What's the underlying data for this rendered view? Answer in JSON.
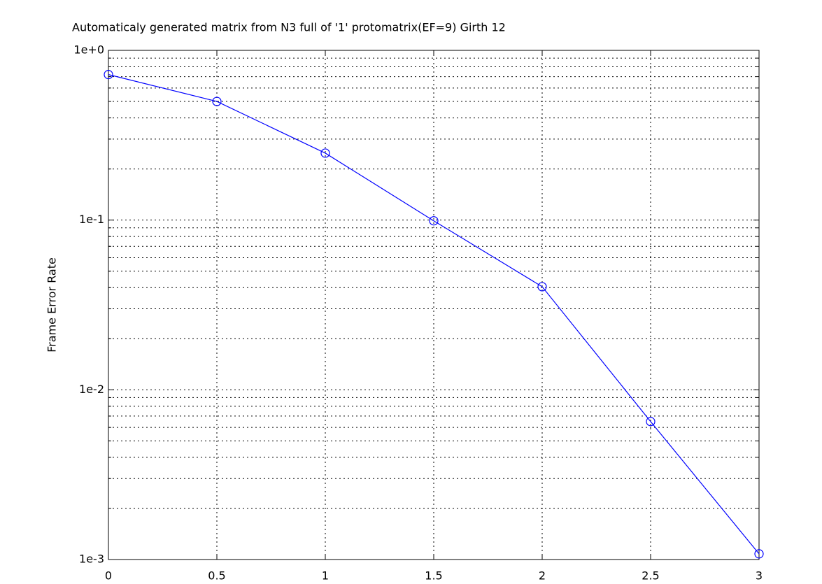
{
  "chart_data": {
    "type": "line",
    "title": "Automaticaly generated matrix from N3 full of '1' protomatrix(EF=9) Girth 12",
    "y_label": "Frame Error Rate",
    "log_y": true,
    "grid": true,
    "x": [
      0,
      0.5,
      1,
      1.5,
      2,
      2.5,
      3
    ],
    "series": [
      {
        "color": "#0000ff",
        "values": [
          0.72,
          0.5,
          0.248,
          0.099,
          0.0405,
          0.0065,
          0.00108
        ]
      }
    ],
    "xlim": [
      0,
      3
    ],
    "xticks": [
      0,
      0.5,
      1,
      1.5,
      2,
      2.5,
      3
    ],
    "ylim": [
      0.001,
      1
    ],
    "yticks": [
      {
        "value": 0.001,
        "label": "1e-3"
      },
      {
        "value": 0.01,
        "label": "1e-2"
      },
      {
        "value": 0.1,
        "label": "1e-1"
      },
      {
        "value": 1,
        "label": "1e+0"
      }
    ],
    "yminorticks": [
      0.002,
      0.003,
      0.004,
      0.005,
      0.006,
      0.007,
      0.008,
      0.009,
      0.02,
      0.03,
      0.04,
      0.05,
      0.06,
      0.07,
      0.08,
      0.09,
      0.2,
      0.3,
      0.4,
      0.5,
      0.6,
      0.7,
      0.8,
      0.9
    ]
  }
}
